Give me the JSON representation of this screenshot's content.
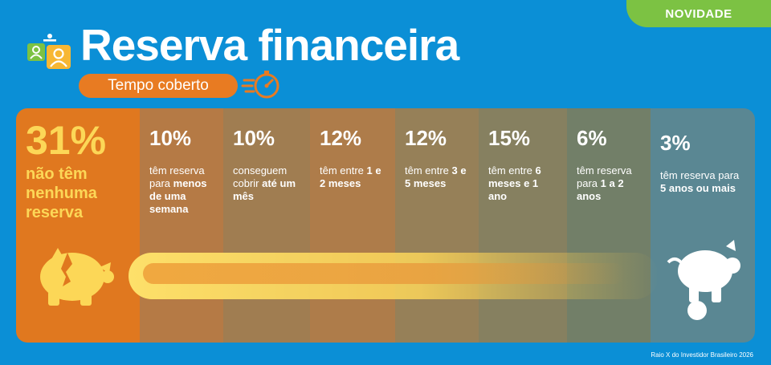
{
  "badge": "NOVIDADE",
  "title": "Reserva financeira",
  "subtitle": "Tempo coberto",
  "footer": "Raio X do Investidor Brasileiro 2026",
  "colors": {
    "background": "#0b8fd6",
    "badge": "#7cc243",
    "pill": "#e87b22",
    "highlight_text": "#fcd757"
  },
  "icons": [
    "people-cards-icon",
    "stopwatch-icon",
    "broken-piggy-bank-icon",
    "piggy-bank-coin-icon"
  ],
  "chart_data": {
    "type": "bar",
    "title": "Reserva financeira",
    "subtitle": "Tempo coberto",
    "unit": "%",
    "categories": [
      "não têm nenhuma reserva",
      "têm reserva para menos de uma semana",
      "conseguem cobrir até um mês",
      "têm entre 1 e 2 meses",
      "têm entre 3 e 5 meses",
      "têm entre 6 meses e 1 ano",
      "têm reserva para 1 a 2 anos",
      "têm reserva para 5 anos ou mais"
    ],
    "values": [
      31,
      10,
      10,
      12,
      12,
      15,
      6,
      3
    ],
    "value_labels": [
      "31%",
      "10%",
      "10%",
      "12%",
      "12%",
      "15%",
      "6%",
      "3%"
    ]
  },
  "columns": [
    {
      "pct": "31%",
      "desc_parts": [
        "não têm nenhuma reserva"
      ],
      "bold_parts": [
        0
      ]
    },
    {
      "pct": "10%",
      "desc_parts": [
        "têm reserva para ",
        "menos de uma semana"
      ],
      "bold_parts": [
        1
      ]
    },
    {
      "pct": "10%",
      "desc_parts": [
        "conseguem cobrir ",
        "até um mês"
      ],
      "bold_parts": [
        1
      ]
    },
    {
      "pct": "12%",
      "desc_parts": [
        "têm entre ",
        "1 e 2 meses"
      ],
      "bold_parts": [
        1
      ]
    },
    {
      "pct": "12%",
      "desc_parts": [
        "têm entre ",
        "3 e 5 meses"
      ],
      "bold_parts": [
        1
      ]
    },
    {
      "pct": "15%",
      "desc_parts": [
        "têm entre ",
        "6 meses e 1 ano"
      ],
      "bold_parts": [
        1
      ]
    },
    {
      "pct": "6%",
      "desc_parts": [
        "têm reserva para ",
        "1 a 2 anos"
      ],
      "bold_parts": [
        1
      ]
    },
    {
      "pct": "3%",
      "desc_parts": [
        "têm reserva para ",
        "5 anos ou mais"
      ],
      "bold_parts": [
        1
      ]
    }
  ]
}
